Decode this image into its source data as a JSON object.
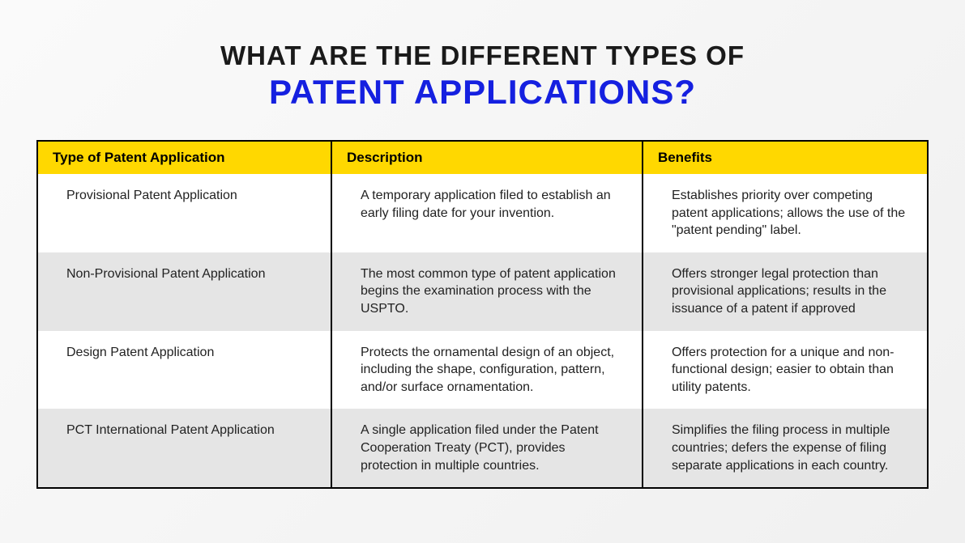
{
  "title": {
    "line1": "WHAT ARE THE DIFFERENT TYPES OF",
    "line2": "PATENT APPLICATIONS?",
    "line1_color": "#1a1a1a",
    "line2_color": "#1520e0",
    "line1_fontsize": 33,
    "line2_fontsize": 42
  },
  "table": {
    "type": "table",
    "header_bg": "#ffd800",
    "border_color": "#000000",
    "row_bg_odd": "#ffffff",
    "row_bg_even": "#e5e5e5",
    "text_color": "#222222",
    "cell_fontsize": 16,
    "header_fontsize": 17,
    "column_widths_pct": [
      33,
      35,
      32
    ],
    "columns": [
      "Type of Patent Application",
      "Description",
      "Benefits"
    ],
    "rows": [
      {
        "type": "Provisional Patent Application",
        "description": "A temporary application filed to establish an early filing date for your invention.",
        "benefits": "Establishes priority over competing patent applications; allows the use of the \"patent pending\" label."
      },
      {
        "type": "Non-Provisional Patent Application",
        "description": "The most common type of patent application begins the examination process with the USPTO.",
        "benefits": "Offers stronger legal protection than provisional applications; results in the issuance of a patent if approved"
      },
      {
        "type": "Design Patent Application",
        "description": "Protects the ornamental design of an object, including the shape, configuration, pattern, and/or surface ornamentation.",
        "benefits": "Offers protection for a unique and non-functional design; easier to obtain than utility patents."
      },
      {
        "type": "PCT International Patent Application",
        "description": "A single application filed under the Patent Cooperation Treaty (PCT), provides protection in multiple countries.",
        "benefits": "Simplifies the filing process in multiple countries; defers the expense of filing separate applications in each country."
      }
    ]
  }
}
